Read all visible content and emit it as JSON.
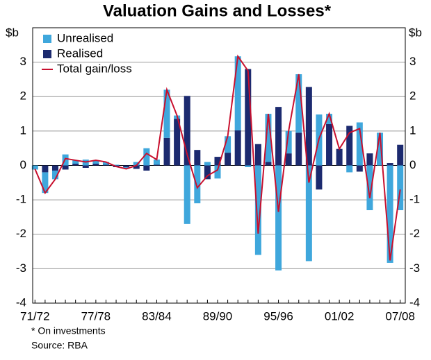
{
  "chart_data": {
    "type": "stacked-bar-line",
    "title": "Valuation Gains and Losses*",
    "y_unit_left": "$b",
    "y_unit_right": "$b",
    "footnote": "* On investments",
    "source": "Source: RBA",
    "categories": [
      "71/72",
      null,
      null,
      null,
      null,
      null,
      "77/78",
      null,
      null,
      null,
      null,
      null,
      "83/84",
      null,
      null,
      null,
      null,
      null,
      "89/90",
      null,
      null,
      null,
      null,
      null,
      "95/96",
      null,
      null,
      null,
      null,
      null,
      "01/02",
      null,
      null,
      null,
      null,
      null,
      "07/08"
    ],
    "series": [
      {
        "name": "Unrealised",
        "color": "#3fa7dc",
        "kind": "bar",
        "values": [
          -0.12,
          -0.6,
          -0.25,
          0.32,
          0.1,
          0.17,
          0.1,
          0.08,
          0.02,
          -0.05,
          0.1,
          0.5,
          0.15,
          1.4,
          0.1,
          -1.7,
          -1.1,
          0.1,
          -0.38,
          0.48,
          2.15,
          -0.05,
          -2.6,
          1.4,
          -3.05,
          0.65,
          1.7,
          -2.78,
          1.48,
          0.3,
          0.0,
          -0.2,
          1.25,
          -1.3,
          0.95,
          -2.83,
          -1.3
        ]
      },
      {
        "name": "Realised",
        "color": "#1c2a6f",
        "kind": "bar",
        "values": [
          0.0,
          -0.2,
          -0.15,
          -0.12,
          0.05,
          -0.07,
          0.05,
          0.02,
          -0.05,
          -0.05,
          -0.1,
          -0.15,
          0.02,
          0.8,
          1.35,
          2.02,
          0.45,
          -0.4,
          0.25,
          0.37,
          1.02,
          2.8,
          0.62,
          0.1,
          1.7,
          0.35,
          0.95,
          2.28,
          -0.7,
          1.2,
          0.48,
          1.15,
          -0.18,
          0.35,
          0.0,
          0.07,
          0.6
        ]
      },
      {
        "name": "Total gain/loss",
        "color": "#c8102e",
        "kind": "line",
        "values": [
          -0.1,
          -0.8,
          -0.4,
          0.2,
          0.15,
          0.1,
          0.15,
          0.1,
          -0.03,
          -0.1,
          0.0,
          0.35,
          0.17,
          2.2,
          1.45,
          0.32,
          -0.65,
          -0.3,
          -0.13,
          0.85,
          3.17,
          2.75,
          -1.98,
          1.5,
          -1.35,
          1.0,
          2.65,
          -0.5,
          0.78,
          1.5,
          0.48,
          0.95,
          1.07,
          -0.95,
          0.95,
          -2.76,
          -0.7
        ]
      }
    ],
    "ylim": [
      -4,
      4
    ],
    "yticks": [
      -4,
      -3,
      -2,
      -1,
      0,
      1,
      2,
      3
    ],
    "y2lim": [
      -4,
      4
    ],
    "y2ticks": [
      -4,
      -3,
      -2,
      -1,
      0,
      1,
      2,
      3
    ],
    "grid": true,
    "legend": "top-left"
  }
}
